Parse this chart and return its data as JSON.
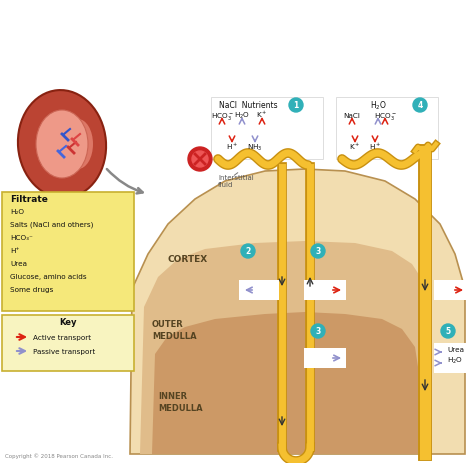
{
  "bg_color": "#ffffff",
  "cortex_color": "#f2ddb0",
  "outer_medulla_color": "#e0bc8a",
  "inner_medulla_color": "#cc9966",
  "filtrate_box_color": "#f5e87a",
  "key_box_color": "#f8f4c0",
  "copyright": "Copyright © 2018 Pearson Canada Inc.",
  "labels": {
    "cortex": "CORTEX",
    "outer_medulla": "OUTER\nMEDULLA",
    "inner_medulla": "INNER\nMEDULLA",
    "interstitial": "Interstitial\nfluid",
    "filtrate_title": "Filtrate",
    "filtrate_items": [
      "H₂O",
      "Salts (NaCl and others)",
      "HCO₃⁻",
      "H⁺",
      "Urea",
      "Glucose, amino acids",
      "Some drugs"
    ],
    "key_title": "Key",
    "active_transport": "Active transport",
    "passive_transport": "Passive transport"
  },
  "arrow_red": "#dd2211",
  "arrow_purple": "#9090cc",
  "tube_color": "#f5c030",
  "tube_dark": "#c89010",
  "circle_color": "#30b0b8"
}
